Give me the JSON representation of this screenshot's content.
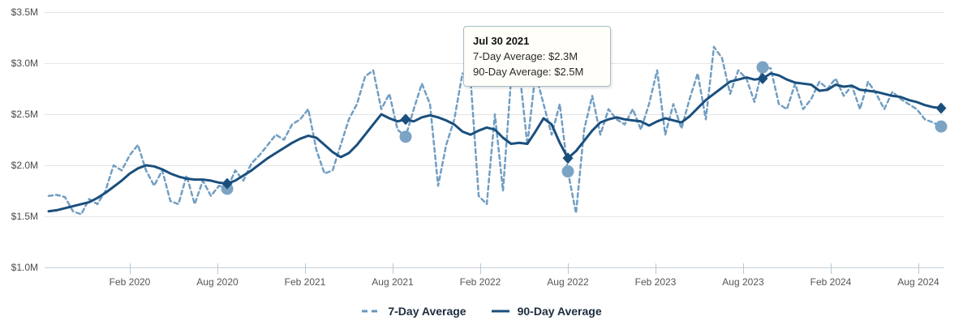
{
  "tooltip": {
    "title": "Jul 30 2021",
    "seven_day_line": "7-Day Average: $2.3M",
    "ninety_day_line": "90-Day Average: $2.5M"
  },
  "legend": {
    "items": [
      {
        "label": "7-Day Average",
        "style": "dashed"
      },
      {
        "label": "90-Day Average",
        "style": "solid"
      }
    ]
  },
  "colors": {
    "seven_day": "#6596be",
    "ninety_day": "#1a4f7d",
    "seven_day_marker": "#7ba3c4",
    "ninety_day_marker": "#1a4f7d",
    "grid": "#e4e4e4",
    "axis": "#c6d0d7",
    "tick": "#b5c9d8"
  },
  "chart_data": {
    "type": "line",
    "title": "",
    "xlabel": "",
    "ylabel": "",
    "grid": true,
    "legend_position": "bottom",
    "y_axis": {
      "min": 1.0,
      "max": 3.5,
      "step": 0.5,
      "tick_labels": [
        "$3.5M",
        "$3.0M",
        "$2.5M",
        "$2.0M",
        "$1.5M",
        "$1.0M"
      ]
    },
    "x_axis": {
      "tick_labels": [
        "Feb 2020",
        "Aug 2020",
        "Feb 2021",
        "Aug 2021",
        "Feb 2022",
        "Aug 2022",
        "Feb 2023",
        "Aug 2023",
        "Feb 2024",
        "Aug 2024"
      ]
    },
    "series": [
      {
        "name": "7-Day Average",
        "style": "dashed",
        "unit": "$M",
        "values": [
          1.7,
          1.71,
          1.69,
          1.55,
          1.52,
          1.67,
          1.62,
          1.75,
          2.0,
          1.95,
          2.1,
          2.2,
          1.95,
          1.8,
          1.95,
          1.65,
          1.62,
          1.9,
          1.62,
          1.85,
          1.7,
          1.8,
          1.77,
          1.95,
          1.85,
          2.02,
          2.1,
          2.2,
          2.3,
          2.25,
          2.4,
          2.45,
          2.55,
          2.15,
          1.92,
          1.95,
          2.2,
          2.45,
          2.6,
          2.87,
          2.93,
          2.55,
          2.7,
          2.35,
          2.28,
          2.55,
          2.8,
          2.6,
          1.8,
          2.2,
          2.45,
          2.9,
          2.85,
          1.7,
          1.62,
          2.5,
          1.75,
          2.85,
          2.95,
          2.2,
          2.9,
          2.6,
          2.3,
          2.6,
          1.94,
          1.53,
          2.35,
          2.68,
          2.3,
          2.55,
          2.45,
          2.4,
          2.55,
          2.35,
          2.6,
          2.93,
          2.3,
          2.6,
          2.36,
          2.65,
          2.9,
          2.45,
          3.16,
          3.05,
          2.7,
          2.93,
          2.85,
          2.62,
          2.96,
          2.95,
          2.6,
          2.55,
          2.8,
          2.55,
          2.65,
          2.82,
          2.75,
          2.85,
          2.68,
          2.78,
          2.55,
          2.82,
          2.7,
          2.55,
          2.72,
          2.65,
          2.6,
          2.55,
          2.45,
          2.42,
          2.38
        ]
      },
      {
        "name": "90-Day Average",
        "style": "solid",
        "unit": "$M",
        "values": [
          1.55,
          1.56,
          1.58,
          1.6,
          1.62,
          1.64,
          1.68,
          1.73,
          1.79,
          1.85,
          1.92,
          1.97,
          2.0,
          1.99,
          1.96,
          1.92,
          1.89,
          1.87,
          1.86,
          1.86,
          1.85,
          1.83,
          1.82,
          1.85,
          1.9,
          1.95,
          2.01,
          2.07,
          2.12,
          2.17,
          2.22,
          2.26,
          2.29,
          2.27,
          2.2,
          2.13,
          2.08,
          2.12,
          2.2,
          2.3,
          2.4,
          2.5,
          2.46,
          2.43,
          2.45,
          2.43,
          2.47,
          2.49,
          2.47,
          2.44,
          2.4,
          2.33,
          2.3,
          2.34,
          2.37,
          2.35,
          2.27,
          2.21,
          2.22,
          2.21,
          2.33,
          2.46,
          2.4,
          2.22,
          2.07,
          2.14,
          2.24,
          2.34,
          2.42,
          2.45,
          2.47,
          2.45,
          2.44,
          2.43,
          2.39,
          2.43,
          2.46,
          2.44,
          2.42,
          2.48,
          2.56,
          2.64,
          2.7,
          2.76,
          2.82,
          2.84,
          2.86,
          2.84,
          2.85,
          2.9,
          2.88,
          2.84,
          2.81,
          2.8,
          2.79,
          2.73,
          2.74,
          2.79,
          2.77,
          2.78,
          2.74,
          2.73,
          2.72,
          2.7,
          2.68,
          2.67,
          2.64,
          2.62,
          2.59,
          2.57,
          2.56
        ]
      }
    ],
    "annual_markers": [
      {
        "index": 22,
        "seven_day": 1.77,
        "ninety_day": 1.82
      },
      {
        "index": 44,
        "seven_day": 2.28,
        "ninety_day": 2.45
      },
      {
        "index": 64,
        "seven_day": 1.94,
        "ninety_day": 2.07
      },
      {
        "index": 88,
        "seven_day": 2.96,
        "ninety_day": 2.85
      },
      {
        "index": 110,
        "seven_day": 2.38,
        "ninety_day": 2.56
      }
    ]
  }
}
